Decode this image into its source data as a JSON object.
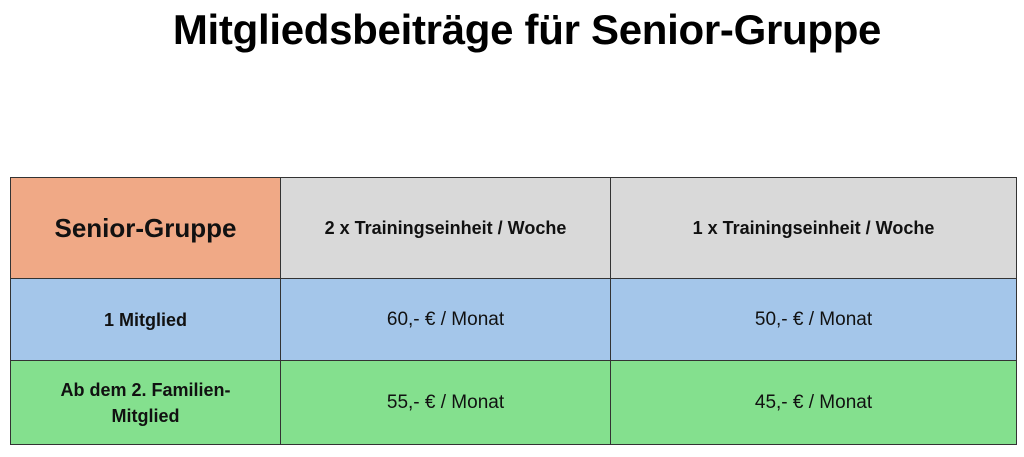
{
  "title": "Mitgliedsbeiträge für Senior-Gruppe",
  "table": {
    "corner": "Senior-Gruppe",
    "columns": [
      "2 x Trainingseinheit / Woche",
      "1 x Trainingseinheit / Woche"
    ],
    "rows": [
      {
        "label": "1 Mitglied",
        "values": [
          "60,- € / Monat",
          "50,- € / Monat"
        ]
      },
      {
        "label_line1": "Ab dem 2. Familien-",
        "label_line2": "Mitglied",
        "values": [
          "55,- € / Monat",
          "45,- € / Monat"
        ]
      }
    ]
  },
  "colors": {
    "corner": "#f0a986",
    "header": "#d9d9d9",
    "row1": "#a4c6ea",
    "row2": "#84e08e"
  }
}
